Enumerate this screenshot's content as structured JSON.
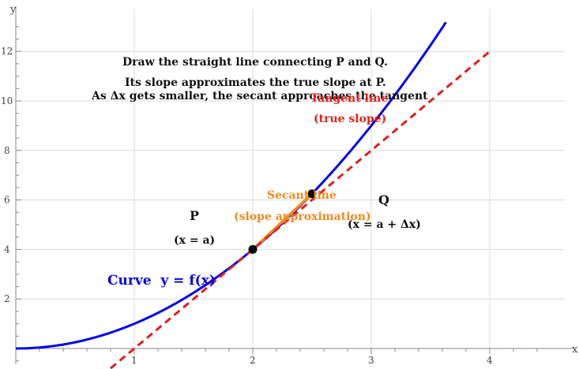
{
  "chart_data": {
    "type": "line",
    "title": "",
    "xlabel": "x",
    "ylabel": "y",
    "xlim": [
      0,
      4.6
    ],
    "ylim": [
      -0.8,
      13.2
    ],
    "grid": true,
    "x_ticks": [
      1,
      2,
      3,
      4
    ],
    "y_ticks": [
      2,
      4,
      6,
      8,
      10,
      12
    ],
    "x_tick_labels": [
      "1",
      "2",
      "3",
      "4"
    ],
    "y_tick_labels": [
      "2",
      "4",
      "6",
      "8",
      "10",
      "12"
    ],
    "curve": {
      "label": "Curve  y = f(x)",
      "color": "#0000ee",
      "function": "x^2",
      "x": [
        0,
        0.5,
        1,
        1.5,
        2,
        2.5,
        3,
        3.5,
        3.63
      ],
      "y": [
        0,
        0.25,
        1,
        2.25,
        4,
        6.25,
        9,
        12.25,
        13.2
      ]
    },
    "tangent_line": {
      "label_line1": "Tangent line",
      "label_line2": "(true slope)",
      "color": "#e0201c",
      "x": [
        0.8,
        4
      ],
      "y": [
        -0.8,
        12
      ]
    },
    "secant_line": {
      "label_line1": "Secant line",
      "label_line2": "(slope approximation)",
      "color": "#f08a1c",
      "x": [
        2,
        2.5
      ],
      "y": [
        4,
        6.25
      ]
    },
    "points": [
      {
        "name": "P",
        "sublabel": "(x = a)",
        "x": 2,
        "y": 4
      },
      {
        "name": "Q",
        "sublabel": "(x = a + Δx)",
        "x": 2.5,
        "y": 6.25
      }
    ],
    "annotations": [
      "Draw the straight line connecting P and Q.",
      "Its slope approximates the true slope at P.",
      "As Δx gets smaller, the secant approaches the tangent"
    ]
  }
}
